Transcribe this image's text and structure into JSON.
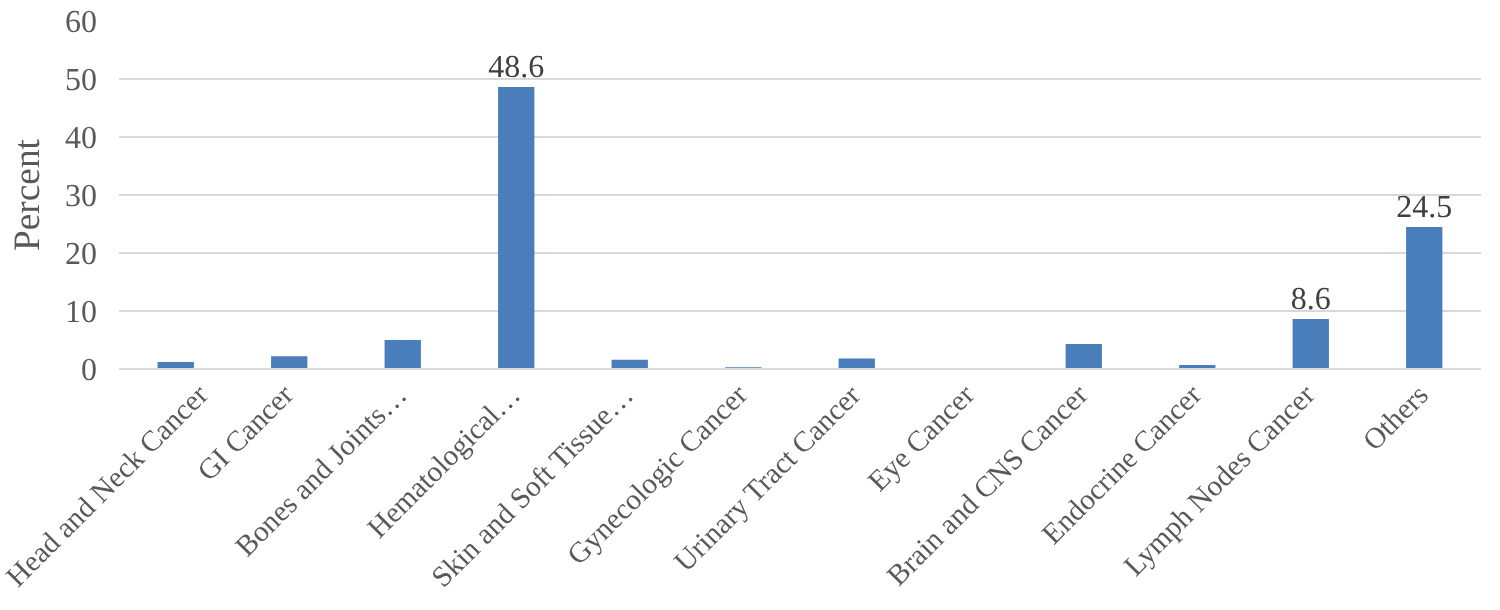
{
  "chart_data": {
    "type": "bar",
    "ylabel": "Percent",
    "categories": [
      "Head and Neck Cancer",
      "GI Cancer",
      "Bones and Joints…",
      "Hematological…",
      "Skin and Soft Tissue…",
      "Gynecologic Cancer",
      "Urinary Tract Cancer",
      "Eye Cancer",
      "Brain and CNS Cancer",
      "Endocrine Cancer",
      "Lymph Nodes Cancer",
      "Others"
    ],
    "values": [
      1.2,
      2.2,
      5.0,
      48.6,
      1.6,
      0.3,
      1.8,
      0,
      4.3,
      0.7,
      8.6,
      24.5
    ],
    "value_labels": [
      null,
      null,
      null,
      "48.6",
      null,
      null,
      null,
      null,
      null,
      null,
      "8.6",
      "24.5"
    ],
    "color": "#4a7ebb",
    "ylim": [
      0,
      60
    ],
    "yticks": [
      0,
      10,
      20,
      30,
      40,
      50,
      60
    ],
    "grid": "y"
  }
}
